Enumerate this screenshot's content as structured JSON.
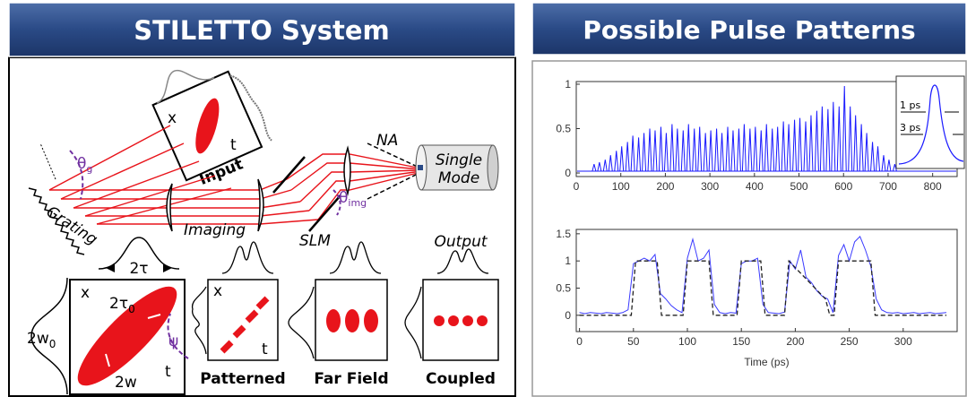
{
  "left_panel": {
    "title": "STILETTO System",
    "input": {
      "x": "x",
      "t": "t",
      "label": "Input"
    },
    "theta_g": {
      "symbol": "θ",
      "sub": "g"
    },
    "grating": "Grating",
    "imaging": "Imaging",
    "slm": "SLM",
    "na": "NA",
    "fiber": [
      "Single",
      "Mode"
    ],
    "theta_img": {
      "symbol": "θ",
      "sub": "img"
    },
    "output": "Output",
    "pulse": {
      "width": "2τ",
      "x": "x",
      "duration": {
        "symbol": "2τ",
        "sub": "0"
      },
      "beam": {
        "symbol": "2w",
        "sub": "0"
      },
      "angle": "ψ",
      "w": "2w",
      "t": "t"
    },
    "panels": [
      {
        "x": "x",
        "t": "t",
        "label": "Patterned"
      },
      {
        "label": "Far Field"
      },
      {
        "label": "Coupled"
      }
    ]
  },
  "right_panel": {
    "title": "Possible Pulse Patterns",
    "plots": [
      {
        "type": "spikes",
        "color": "#1a1aff",
        "xlim": [
          0,
          855
        ],
        "ylim": [
          -0.04,
          1.03
        ],
        "xticks": [
          0,
          100,
          200,
          300,
          400,
          500,
          600,
          700,
          800
        ],
        "yticks": [
          0,
          0.5,
          1
        ],
        "peaks": {
          "x": [
            40,
            52,
            65,
            77,
            90,
            102,
            115,
            127,
            140,
            152,
            165,
            177,
            190,
            202,
            215,
            227,
            240,
            252,
            265,
            277,
            290,
            302,
            315,
            327,
            340,
            352,
            365,
            377,
            390,
            402,
            415,
            427,
            440,
            452,
            465,
            477,
            490,
            502,
            515,
            527,
            540,
            552,
            565,
            577,
            590,
            602,
            615,
            627,
            640,
            652,
            665,
            677,
            690,
            702,
            715
          ],
          "values": [
            0.1,
            0.12,
            0.15,
            0.2,
            0.25,
            0.3,
            0.35,
            0.42,
            0.4,
            0.45,
            0.5,
            0.48,
            0.52,
            0.45,
            0.55,
            0.5,
            0.48,
            0.55,
            0.5,
            0.52,
            0.45,
            0.48,
            0.5,
            0.45,
            0.52,
            0.48,
            0.5,
            0.55,
            0.5,
            0.52,
            0.48,
            0.55,
            0.5,
            0.52,
            0.58,
            0.55,
            0.6,
            0.62,
            0.58,
            0.65,
            0.7,
            0.75,
            0.72,
            0.8,
            0.75,
            0.98,
            0.75,
            0.65,
            0.55,
            0.45,
            0.35,
            0.3,
            0.2,
            0.15,
            0.1
          ]
        },
        "inset": {
          "labels": [
            "1 ps",
            "3 ps"
          ]
        }
      },
      {
        "type": "line",
        "xlim": [
          -3,
          350
        ],
        "ylim": [
          -0.3,
          1.58
        ],
        "xticks": [
          0,
          50,
          100,
          150,
          200,
          250,
          300
        ],
        "yticks": [
          0,
          0.5,
          1,
          1.5
        ],
        "xlabel": "Time (ps)",
        "series": [
          {
            "color": "#3a3aff",
            "x": [
              0,
              5,
              10,
              15,
              20,
              25,
              30,
              35,
              40,
              45,
              50,
              55,
              60,
              65,
              70,
              75,
              80,
              85,
              90,
              95,
              100,
              105,
              110,
              115,
              120,
              125,
              130,
              135,
              140,
              145,
              150,
              155,
              160,
              165,
              170,
              175,
              180,
              185,
              190,
              195,
              200,
              205,
              210,
              215,
              220,
              225,
              230,
              235,
              240,
              245,
              250,
              255,
              260,
              265,
              270,
              275,
              280,
              285,
              290,
              295,
              300,
              305,
              310,
              315,
              320,
              325,
              330,
              335,
              340
            ],
            "values": [
              0.05,
              0.03,
              0.05,
              0.04,
              0.03,
              0.05,
              0.04,
              0.03,
              0.05,
              0.1,
              0.95,
              1.0,
              1.05,
              1.0,
              1.12,
              0.4,
              0.3,
              0.18,
              0.1,
              0.05,
              1.05,
              1.4,
              1.0,
              1.05,
              1.2,
              0.2,
              0.05,
              0.03,
              0.05,
              0.04,
              0.95,
              1.0,
              1.0,
              1.05,
              0.2,
              0.05,
              0.04,
              0.03,
              0.06,
              1.0,
              0.85,
              1.2,
              0.7,
              0.6,
              0.45,
              0.35,
              0.3,
              0.05,
              1.1,
              1.3,
              1.0,
              1.35,
              1.45,
              1.2,
              0.9,
              0.3,
              0.1,
              0.05,
              0.04,
              0.05,
              0.03,
              0.04,
              0.05,
              0.03,
              0.04,
              0.05,
              0.03,
              0.04,
              0.05
            ]
          },
          {
            "color": "#222222",
            "dashed": true,
            "x": [
              0,
              48,
              52,
              72,
              76,
              96,
              100,
              120,
              124,
              146,
              150,
              168,
              172,
              190,
              194,
              228,
              232,
              236,
              240,
              270,
              274,
              340
            ],
            "values": [
              0,
              0,
              1,
              1,
              0,
              0,
              1,
              1,
              0,
              0,
              1,
              1,
              0,
              0,
              1,
              0.3,
              0,
              0,
              1,
              1,
              0,
              0
            ]
          }
        ]
      }
    ]
  }
}
